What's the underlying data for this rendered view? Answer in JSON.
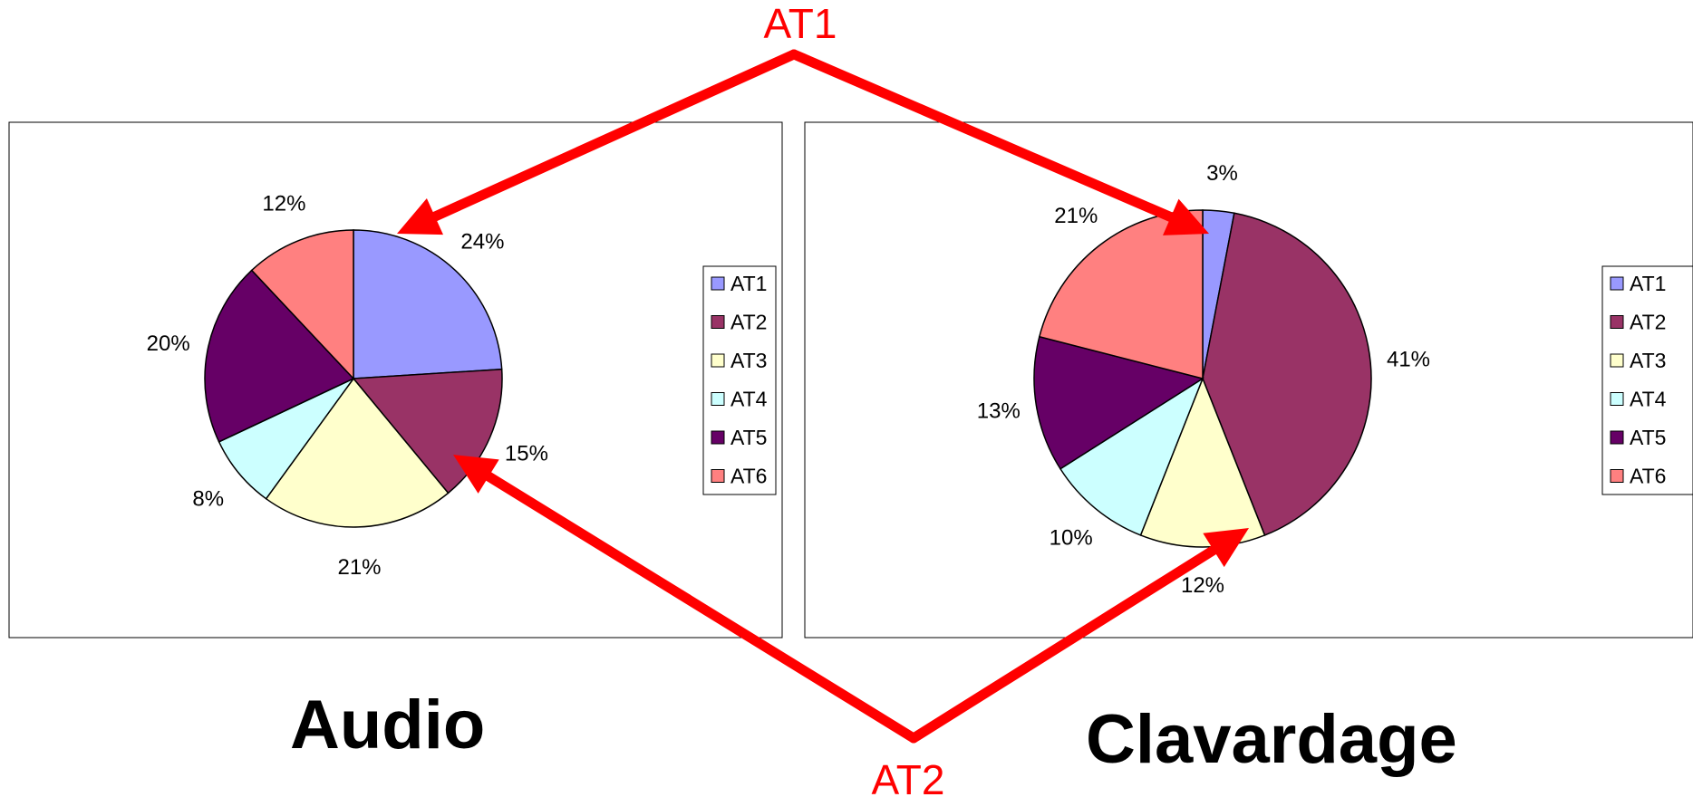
{
  "charts": [
    {
      "title": "Audio",
      "legend_items": [
        "AT1",
        "AT2",
        "AT3",
        "AT4",
        "AT5",
        "AT6"
      ]
    },
    {
      "title": "Clavardage",
      "legend_items": [
        "AT1",
        "AT2",
        "AT3",
        "AT4",
        "AT5",
        "AT6"
      ]
    }
  ],
  "annotations": {
    "top_label": "AT1",
    "bottom_label": "AT2",
    "color": "#ff0000"
  },
  "colors": [
    "#9999ff",
    "#993366",
    "#ffffcc",
    "#ccffff",
    "#660066",
    "#ff8080"
  ],
  "chart_data": [
    {
      "type": "pie",
      "title": "Audio",
      "categories": [
        "AT1",
        "AT2",
        "AT3",
        "AT4",
        "AT5",
        "AT6"
      ],
      "values": [
        24,
        15,
        21,
        8,
        20,
        12
      ],
      "data_labels": [
        "24%",
        "15%",
        "21%",
        "8%",
        "20%",
        "12%"
      ],
      "legend": "right"
    },
    {
      "type": "pie",
      "title": "Clavardage",
      "categories": [
        "AT1",
        "AT2",
        "AT3",
        "AT4",
        "AT5",
        "AT6"
      ],
      "values": [
        3,
        41,
        12,
        10,
        13,
        21
      ],
      "data_labels": [
        "3%",
        "41%",
        "12%",
        "10%",
        "13%",
        "21%"
      ],
      "legend": "right"
    }
  ]
}
